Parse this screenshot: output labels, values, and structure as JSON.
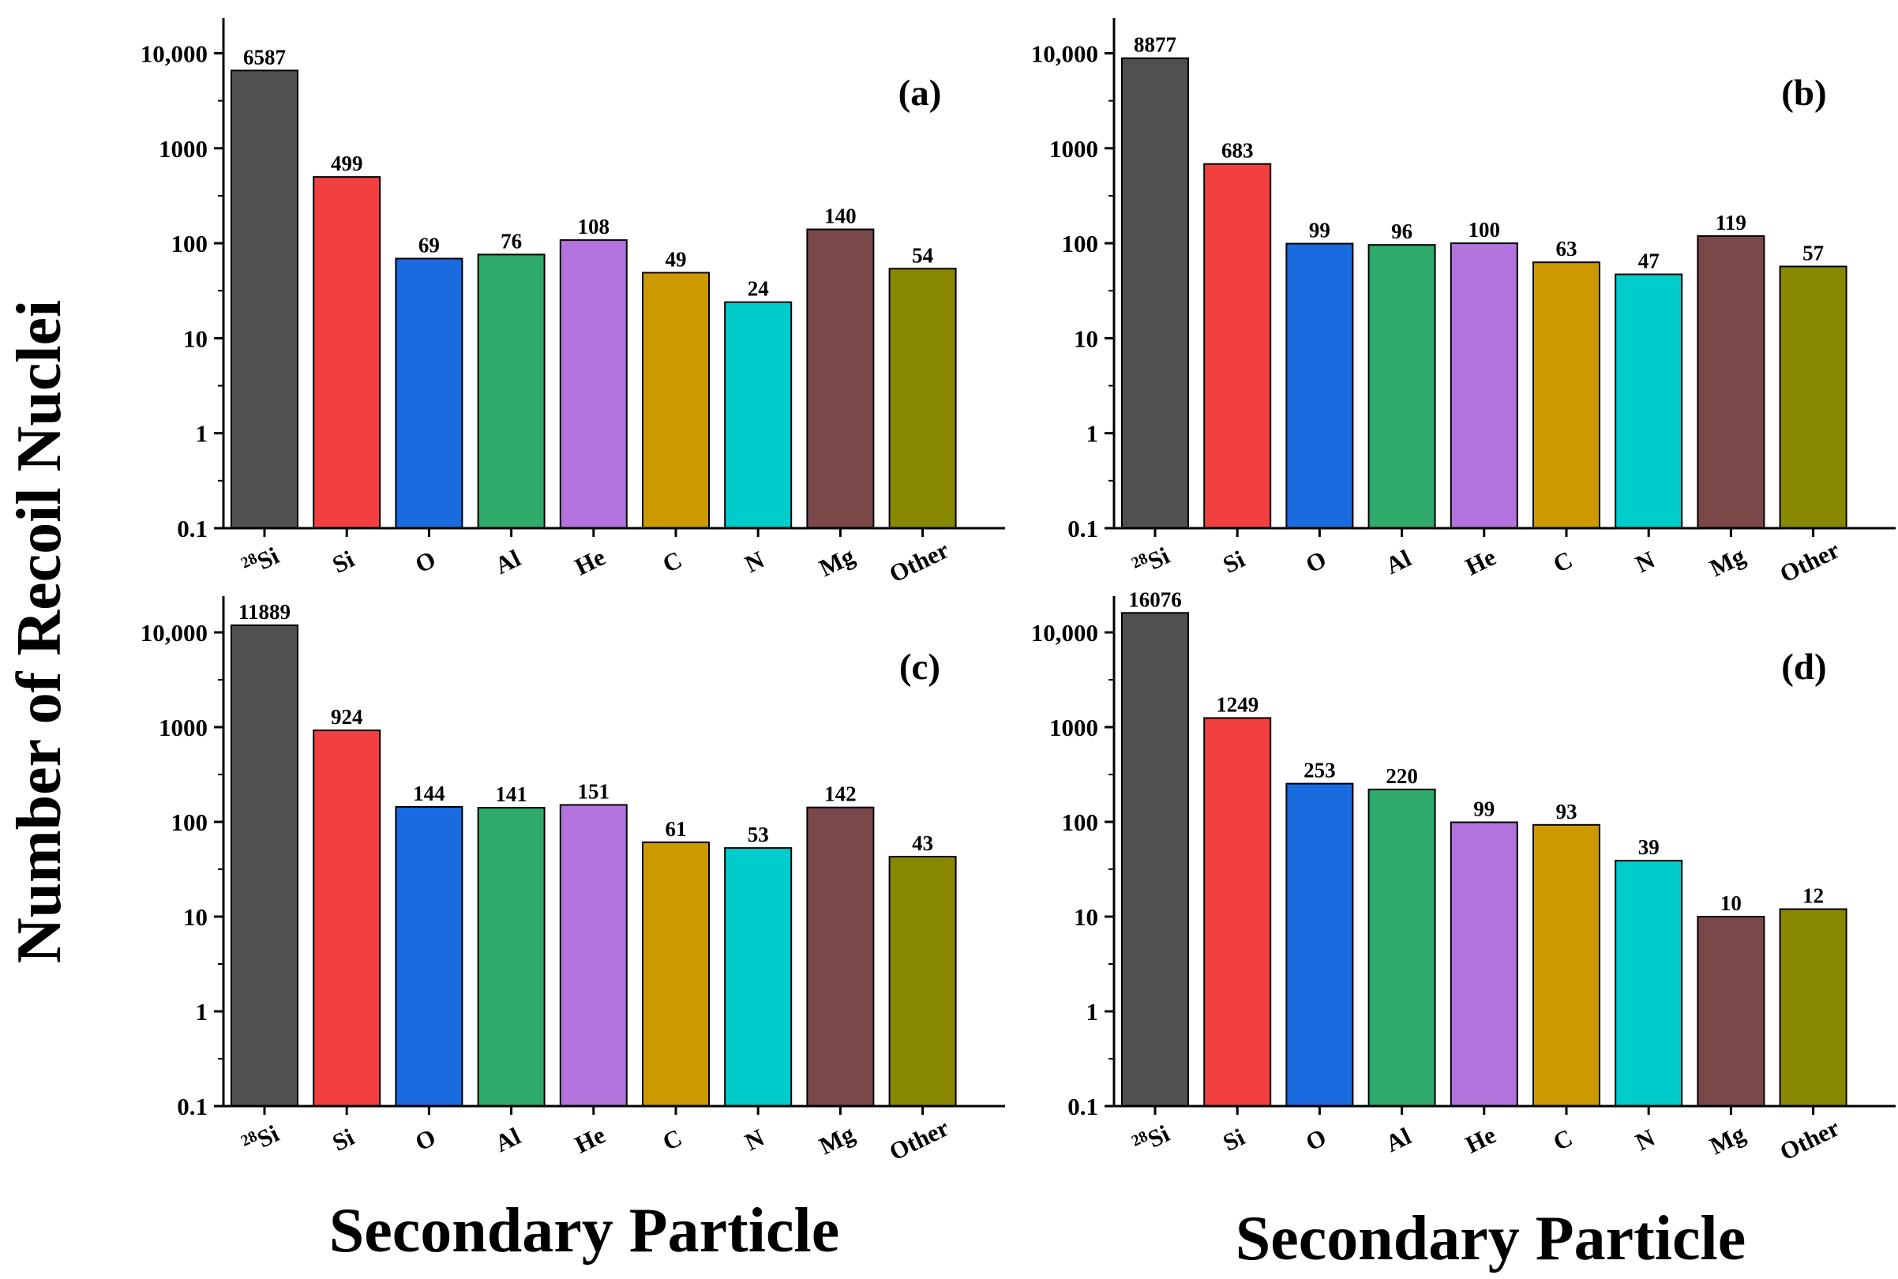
{
  "figure": {
    "ylabel": "Number of Recoil Nuclei",
    "xlabel_left": "Secondary Particle",
    "xlabel_right": "Secondary Particle"
  },
  "chart_data": [
    {
      "type": "bar",
      "panel_label": "(a)",
      "scale": "log",
      "categories": [
        "28Si",
        "Si",
        "O",
        "Al",
        "He",
        "C",
        "N",
        "Mg",
        "Other"
      ],
      "values": [
        6587,
        499,
        69,
        76,
        108,
        49,
        24,
        140,
        54
      ],
      "yticks": [
        "0.1",
        "1",
        "10",
        "100",
        "1000",
        "10,000"
      ],
      "ylim": [
        0.1,
        20000
      ]
    },
    {
      "type": "bar",
      "panel_label": "(b)",
      "scale": "log",
      "categories": [
        "28Si",
        "Si",
        "O",
        "Al",
        "He",
        "C",
        "N",
        "Mg",
        "Other"
      ],
      "values": [
        8877,
        683,
        99,
        96,
        100,
        63,
        47,
        119,
        57
      ],
      "yticks": [
        "0.1",
        "1",
        "10",
        "100",
        "1000",
        "10,000"
      ],
      "ylim": [
        0.1,
        20000
      ]
    },
    {
      "type": "bar",
      "panel_label": "(c)",
      "scale": "log",
      "categories": [
        "28Si",
        "Si",
        "O",
        "Al",
        "He",
        "C",
        "N",
        "Mg",
        "Other"
      ],
      "values": [
        11889,
        924,
        144,
        141,
        151,
        61,
        53,
        142,
        43
      ],
      "yticks": [
        "0.1",
        "1",
        "10",
        "100",
        "1000",
        "10,000"
      ],
      "ylim": [
        0.1,
        20000
      ]
    },
    {
      "type": "bar",
      "panel_label": "(d)",
      "scale": "log",
      "categories": [
        "28Si",
        "Si",
        "O",
        "Al",
        "He",
        "C",
        "N",
        "Mg",
        "Other"
      ],
      "values": [
        16076,
        1249,
        253,
        220,
        99,
        93,
        39,
        10,
        12
      ],
      "yticks": [
        "0.1",
        "1",
        "10",
        "100",
        "1000",
        "10,000"
      ],
      "ylim": [
        0.1,
        20000
      ]
    }
  ],
  "colors": [
    "#505050",
    "#f24040",
    "#1a6ae0",
    "#2eaa6a",
    "#b274dc",
    "#cc9900",
    "#00cccc",
    "#7a4848",
    "#888800"
  ]
}
